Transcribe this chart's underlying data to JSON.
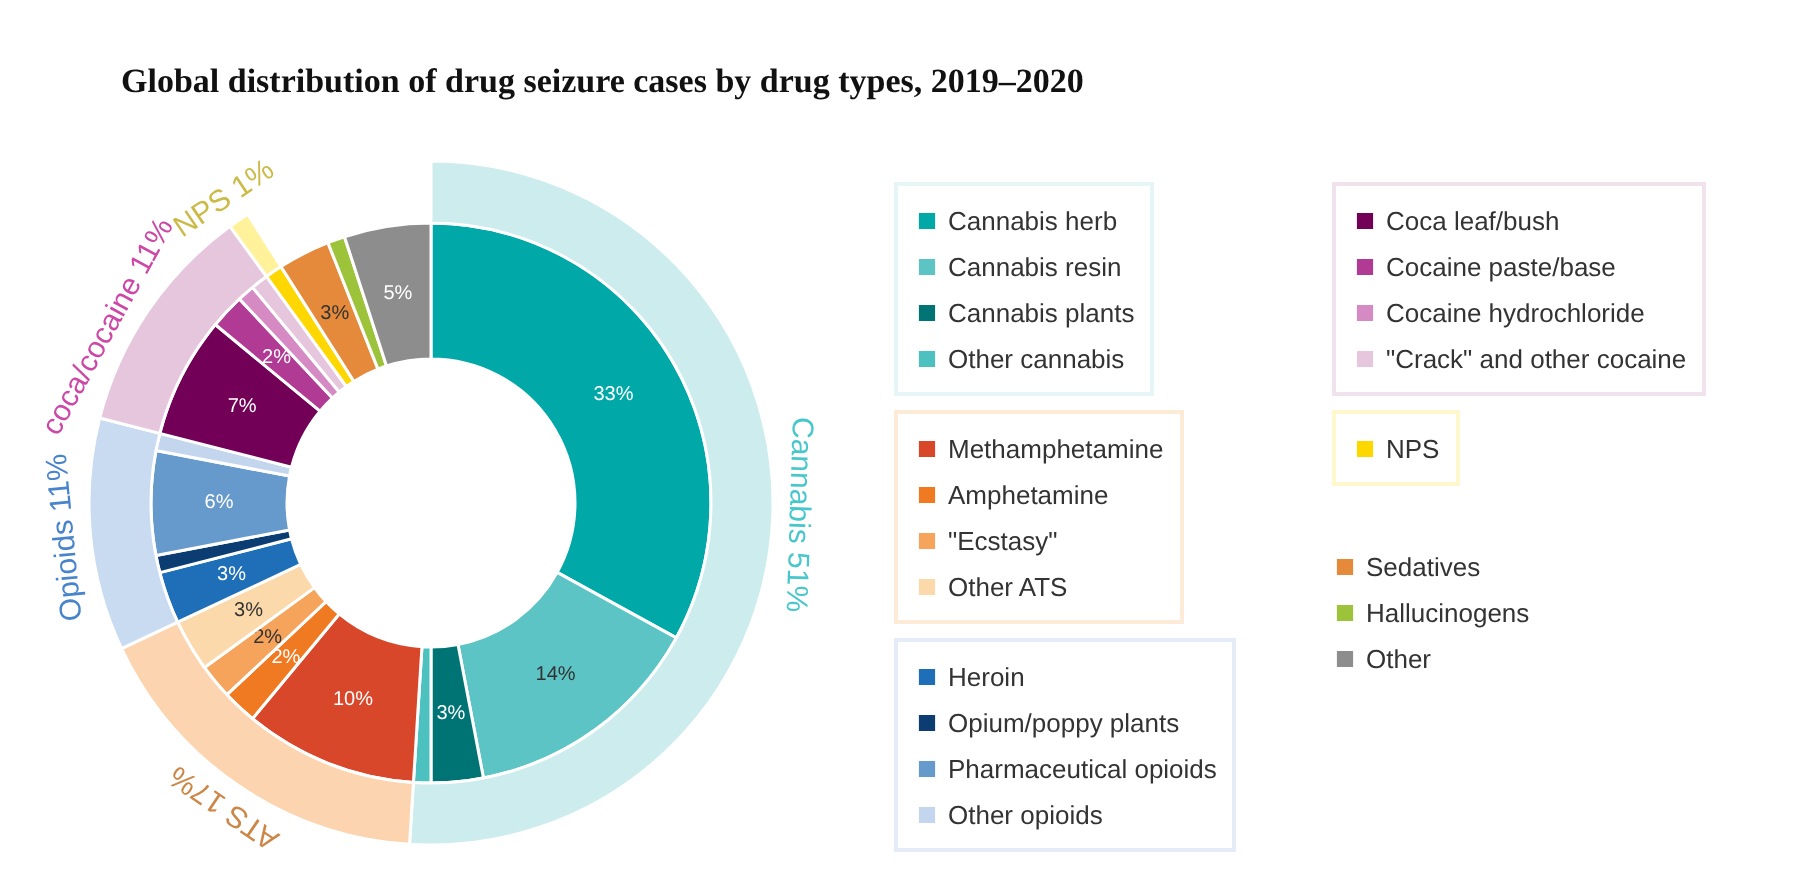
{
  "chart_data": {
    "type": "donut",
    "title": "Global distribution of drug seizure cases by drug types, 2019–2020",
    "legend": "right",
    "categories": [
      "Cannabis herb",
      "Cannabis resin",
      "Cannabis plants",
      "Other cannabis",
      "Methamphetamine",
      "Amphetamine",
      "\"Ecstasy\"",
      "Other ATS",
      "Heroin",
      "Opium/poppy plants",
      "Pharmaceutical opioids",
      "Other opioids",
      "Coca leaf/bush",
      "Cocaine paste/base",
      "Cocaine hydrochloride",
      "\"Crack\" and other cocaine",
      "NPS",
      "Sedatives",
      "Hallucinogens",
      "Other"
    ],
    "series": [
      {
        "values": [
          33,
          14,
          3,
          1,
          10,
          2,
          2,
          3,
          3,
          1,
          6,
          1,
          7,
          2,
          1,
          1,
          1,
          3,
          1,
          5
        ],
        "colors": [
          "#00a9a8",
          "#5cc4c4",
          "#007474",
          "#4dc0c0",
          "#d9472b",
          "#f07a22",
          "#f6a35c",
          "#fcd9ab",
          "#1f6fb8",
          "#0b3d73",
          "#6699cc",
          "#c4d6ee",
          "#720057",
          "#b03a94",
          "#d58ac4",
          "#e6c6dd",
          "#ffd700",
          "#e58a3a",
          "#9cc33a",
          "#8d8d8d"
        ],
        "value_labels": [
          "33%",
          "14%",
          "3%",
          null,
          "10%",
          "2%",
          "2%",
          "3%",
          "3%",
          null,
          "6%",
          null,
          "7%",
          "2%",
          null,
          null,
          null,
          "3%",
          null,
          "5%"
        ]
      },
      {
        "values": [
          51,
          null,
          null,
          null,
          17,
          null,
          null,
          null,
          11,
          null,
          null,
          null,
          11,
          null,
          null,
          null,
          1,
          null,
          null,
          null
        ],
        "colors": [
          "#cdeced",
          null,
          null,
          null,
          "#fcd5b0",
          null,
          null,
          null,
          "#c9dbf0",
          null,
          null,
          null,
          "#e6c6dd",
          null,
          null,
          null,
          "#fff29a",
          null,
          null,
          null
        ],
        "value_labels": [
          "Cannabis 51%",
          null,
          null,
          null,
          "ATS 17%",
          null,
          null,
          null,
          "Opioids 11%",
          null,
          null,
          null,
          "coca/cocaine 11%",
          null,
          null,
          null,
          "NPS 1%",
          null,
          null,
          null
        ]
      }
    ]
  }
}
